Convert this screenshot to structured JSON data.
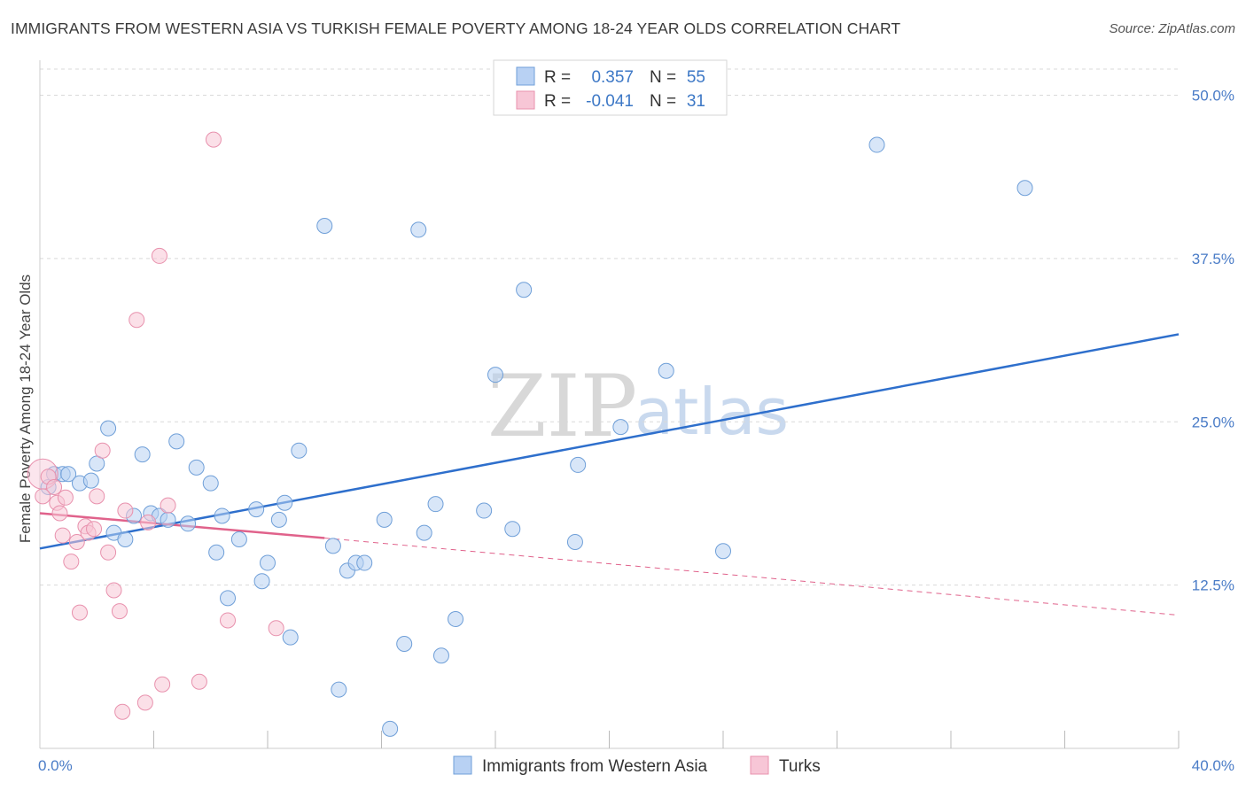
{
  "title": "IMMIGRANTS FROM WESTERN ASIA VS TURKISH FEMALE POVERTY AMONG 18-24 YEAR OLDS CORRELATION CHART",
  "source": "Source: ZipAtlas.com",
  "watermark": {
    "zip": "ZIP",
    "atlas": "atlas"
  },
  "colors": {
    "blue_fill": "#b8d1f3",
    "blue_stroke": "#6f9fd8",
    "blue_line": "#2e6fcc",
    "pink_fill": "#f7c6d6",
    "pink_stroke": "#e891ad",
    "pink_line": "#e0628b",
    "grid": "#d9d9d9",
    "axis_text": "#4a7cc7"
  },
  "legend": {
    "rows": [
      {
        "r_label": "R =",
        "r_value": "0.357",
        "n_label": "N =",
        "n_value": "55",
        "series": "blue"
      },
      {
        "r_label": "R =",
        "r_value": "-0.041",
        "n_label": "N =",
        "n_value": "31",
        "series": "pink"
      }
    ]
  },
  "chart_data": {
    "type": "scatter",
    "title": "IMMIGRANTS FROM WESTERN ASIA VS TURKISH FEMALE POVERTY AMONG 18-24 YEAR OLDS CORRELATION CHART",
    "xlabel": "",
    "ylabel": "Female Poverty Among 18-24 Year Olds",
    "xlim": [
      0,
      40
    ],
    "ylim": [
      0,
      52
    ],
    "x_tick_labels": [
      "0.0%",
      "40.0%"
    ],
    "y_ticks": [
      12.5,
      25.0,
      37.5,
      50.0
    ],
    "y_tick_labels": [
      "12.5%",
      "25.0%",
      "37.5%",
      "50.0%"
    ],
    "grid": true,
    "legend_position": "top-center",
    "series": [
      {
        "name": "Immigrants from Western Asia",
        "color": "#6f9fd8",
        "points": [
          [
            0.3,
            20.0
          ],
          [
            0.5,
            21.0
          ],
          [
            0.8,
            21.0
          ],
          [
            1.0,
            21.0
          ],
          [
            1.4,
            20.3
          ],
          [
            1.8,
            20.5
          ],
          [
            2.0,
            21.8
          ],
          [
            2.4,
            24.5
          ],
          [
            2.6,
            16.5
          ],
          [
            3.0,
            16.0
          ],
          [
            3.3,
            17.8
          ],
          [
            3.6,
            22.5
          ],
          [
            3.9,
            18.0
          ],
          [
            4.2,
            17.8
          ],
          [
            4.5,
            17.5
          ],
          [
            4.8,
            23.5
          ],
          [
            5.2,
            17.2
          ],
          [
            5.5,
            21.5
          ],
          [
            6.0,
            20.3
          ],
          [
            6.2,
            15.0
          ],
          [
            6.4,
            17.8
          ],
          [
            6.6,
            11.5
          ],
          [
            7.0,
            16.0
          ],
          [
            7.6,
            18.3
          ],
          [
            7.8,
            12.8
          ],
          [
            8.0,
            14.2
          ],
          [
            8.4,
            17.5
          ],
          [
            8.6,
            18.8
          ],
          [
            8.8,
            8.5
          ],
          [
            9.1,
            22.8
          ],
          [
            10.0,
            40.0
          ],
          [
            10.3,
            15.5
          ],
          [
            10.5,
            4.5
          ],
          [
            10.8,
            13.6
          ],
          [
            11.1,
            14.2
          ],
          [
            11.4,
            14.2
          ],
          [
            12.1,
            17.5
          ],
          [
            12.3,
            1.5
          ],
          [
            12.8,
            8.0
          ],
          [
            13.3,
            39.7
          ],
          [
            13.5,
            16.5
          ],
          [
            13.9,
            18.7
          ],
          [
            14.1,
            7.1
          ],
          [
            14.6,
            9.9
          ],
          [
            15.6,
            18.2
          ],
          [
            16.0,
            28.6
          ],
          [
            16.6,
            16.8
          ],
          [
            17.0,
            35.1
          ],
          [
            18.8,
            15.8
          ],
          [
            18.9,
            21.7
          ],
          [
            20.4,
            24.6
          ],
          [
            22.0,
            28.9
          ],
          [
            24.0,
            15.1
          ],
          [
            29.4,
            46.2
          ],
          [
            34.6,
            42.9
          ]
        ]
      },
      {
        "name": "Turks",
        "color": "#e891ad",
        "points": [
          [
            0.1,
            21.0
          ],
          [
            0.3,
            20.8
          ],
          [
            0.5,
            20.0
          ],
          [
            0.6,
            18.8
          ],
          [
            0.7,
            18.0
          ],
          [
            0.8,
            16.3
          ],
          [
            0.9,
            19.2
          ],
          [
            1.1,
            14.3
          ],
          [
            1.3,
            15.8
          ],
          [
            1.4,
            10.4
          ],
          [
            1.6,
            17.0
          ],
          [
            1.7,
            16.5
          ],
          [
            1.9,
            16.8
          ],
          [
            2.0,
            19.3
          ],
          [
            2.2,
            22.8
          ],
          [
            2.4,
            15.0
          ],
          [
            2.6,
            12.1
          ],
          [
            2.8,
            10.5
          ],
          [
            2.9,
            2.8
          ],
          [
            3.0,
            18.2
          ],
          [
            3.4,
            32.8
          ],
          [
            3.7,
            3.5
          ],
          [
            3.8,
            17.3
          ],
          [
            4.2,
            37.7
          ],
          [
            4.3,
            4.9
          ],
          [
            4.5,
            18.6
          ],
          [
            5.6,
            5.1
          ],
          [
            6.1,
            46.6
          ],
          [
            6.6,
            9.8
          ],
          [
            8.3,
            9.2
          ],
          [
            0.1,
            19.3
          ]
        ]
      }
    ],
    "trendlines": [
      {
        "series": "Immigrants from Western Asia",
        "x": [
          0,
          40
        ],
        "y": [
          15.3,
          31.7
        ],
        "style": "solid"
      },
      {
        "series": "Turks",
        "x": [
          0,
          10
        ],
        "y": [
          18.0,
          16.1
        ],
        "style": "solid"
      },
      {
        "series": "Turks",
        "x": [
          10,
          40
        ],
        "y": [
          16.1,
          10.2
        ],
        "style": "dashed"
      }
    ]
  },
  "bottom_legend": [
    {
      "label": "Immigrants from Western Asia",
      "series": "blue"
    },
    {
      "label": "Turks",
      "series": "pink"
    }
  ]
}
